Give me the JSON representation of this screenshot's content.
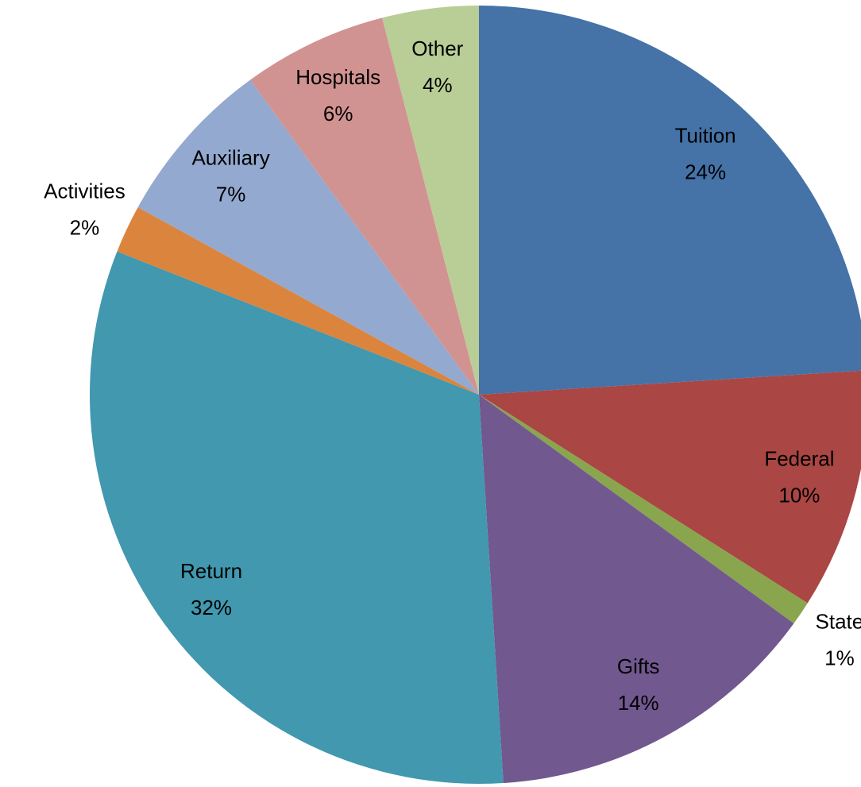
{
  "chart_data": {
    "type": "pie",
    "categories": [
      "Tuition",
      "Federal",
      "State",
      "Gifts",
      "Return",
      "Activities",
      "Auxiliary",
      "Hospitals",
      "Other"
    ],
    "values": [
      24,
      10,
      1,
      14,
      32,
      2,
      7,
      6,
      4
    ],
    "value_labels": [
      "24%",
      "10%",
      "1%",
      "14%",
      "32%",
      "2%",
      "7%",
      "6%",
      "4%"
    ],
    "colors": [
      "#4572a7",
      "#aa4643",
      "#89a54e",
      "#71588f",
      "#4198af",
      "#db843d",
      "#93a9cf",
      "#d19392",
      "#b9cd96"
    ]
  }
}
